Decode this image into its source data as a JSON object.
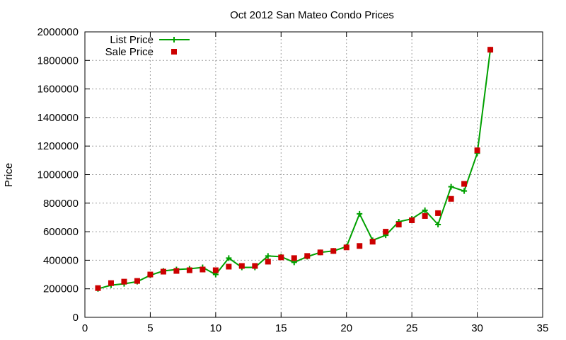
{
  "chart_data": {
    "type": "line",
    "title": "Oct 2012 San Mateo Condo Prices",
    "xlabel": "",
    "ylabel": "Price",
    "xlim": [
      0,
      35
    ],
    "ylim": [
      0,
      2000000
    ],
    "xticks": [
      0,
      5,
      10,
      15,
      20,
      25,
      30,
      35
    ],
    "yticks": [
      0,
      200000,
      400000,
      600000,
      800000,
      1000000,
      1200000,
      1400000,
      1600000,
      1800000,
      2000000
    ],
    "grid": true,
    "legend_position": "top-left",
    "series": [
      {
        "name": "List Price",
        "style": "line+cross",
        "color": "#00a000",
        "x": [
          1,
          2,
          3,
          4,
          5,
          6,
          7,
          8,
          9,
          10,
          11,
          12,
          13,
          14,
          15,
          16,
          17,
          18,
          19,
          20,
          21,
          22,
          23,
          24,
          25,
          26,
          27,
          28,
          29,
          30,
          31
        ],
        "y": [
          200000,
          225000,
          235000,
          250000,
          295000,
          325000,
          335000,
          340000,
          350000,
          300000,
          415000,
          350000,
          350000,
          430000,
          425000,
          385000,
          425000,
          455000,
          465000,
          495000,
          725000,
          540000,
          575000,
          670000,
          690000,
          750000,
          650000,
          915000,
          885000,
          1150000,
          1875000
        ]
      },
      {
        "name": "Sale Price",
        "style": "square",
        "color": "#cc0000",
        "x": [
          1,
          2,
          3,
          4,
          5,
          6,
          7,
          8,
          9,
          10,
          11,
          12,
          13,
          14,
          15,
          16,
          17,
          18,
          19,
          20,
          21,
          22,
          23,
          24,
          25,
          26,
          27,
          28,
          29,
          30,
          31
        ],
        "y": [
          205000,
          240000,
          250000,
          255000,
          300000,
          320000,
          325000,
          330000,
          335000,
          330000,
          355000,
          360000,
          360000,
          390000,
          420000,
          415000,
          430000,
          455000,
          465000,
          490000,
          500000,
          530000,
          600000,
          650000,
          680000,
          710000,
          730000,
          830000,
          935000,
          1170000,
          1875000
        ]
      }
    ]
  }
}
